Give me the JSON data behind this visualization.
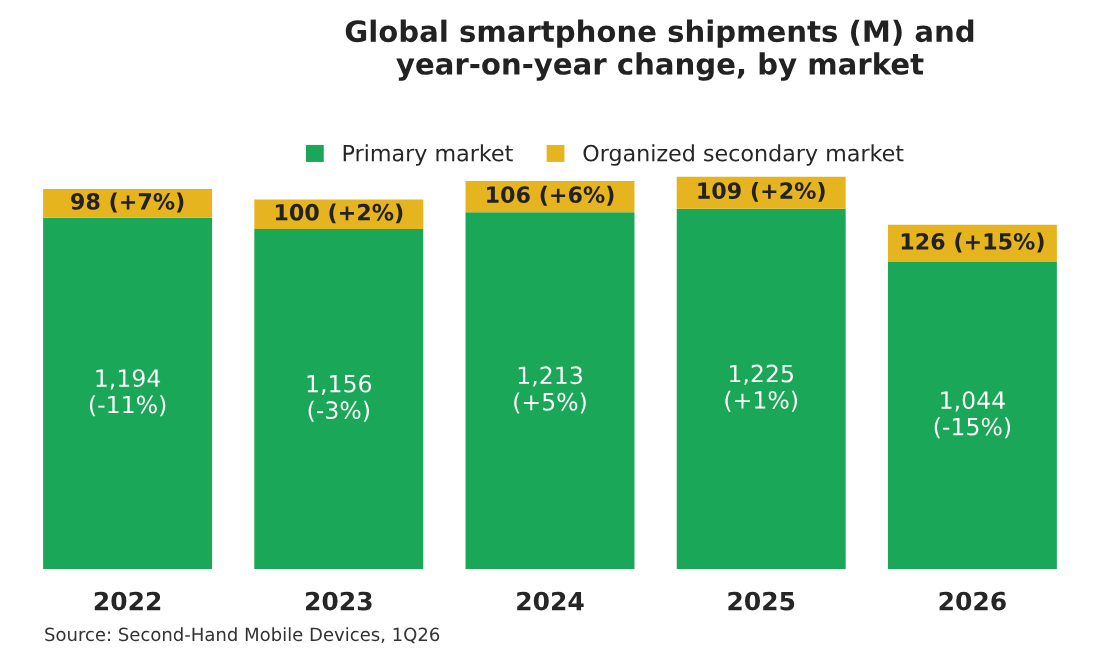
{
  "chart_data": {
    "type": "bar",
    "title": "Global smartphone shipments (M) and\nyear-on-year change, by market",
    "categories": [
      "2022",
      "2023",
      "2024",
      "2025",
      "2026"
    ],
    "stacked": true,
    "legend": "top",
    "series": [
      {
        "name": "Primary market",
        "color": "#1aa858",
        "values": [
          1194,
          1156,
          1213,
          1225,
          1044
        ],
        "value_labels": [
          "1,194\n(-11%)",
          "1,156\n(-3%)",
          "1,213\n(+5%)",
          "1,225\n(+1%)",
          "1,044\n(-15%)"
        ]
      },
      {
        "name": "Organized secondary market",
        "color": "#e6b41e",
        "values": [
          98,
          100,
          106,
          109,
          126
        ],
        "value_labels": [
          "98 (+7%)",
          "100 (+2%)",
          "106 (+6%)",
          "109 (+2%)",
          "126 (+15%)"
        ]
      }
    ],
    "annotations": [
      "Source: Second-Hand Mobile Devices, 1Q26"
    ]
  }
}
